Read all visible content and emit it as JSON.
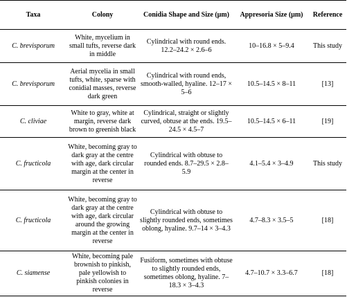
{
  "headers": {
    "taxa": "Taxa",
    "colony": "Colony",
    "conidia": "Conidia Shape and Size (μm)",
    "appresoria": "Appresoria Size (μm)",
    "reference": "Reference"
  },
  "rows": [
    {
      "taxa": "C. brevisporum",
      "colony": "White, mycelium in small tufts, reverse dark in middle",
      "conidia": "Cylindrical with round ends. 12.2–24.2 × 2.6–6",
      "appresoria": "10–16.8 × 5–9.4",
      "reference": "This study"
    },
    {
      "taxa": "C. brevisporum",
      "colony": "Aerial mycelia in small tufts, white, sparse with conidial masses, reverse dark green",
      "conidia": "Cylindrical with round ends, smooth-walled, hyaline. 12–17 × 5–6",
      "appresoria": "10.5–14.5 × 8–11",
      "reference": "[13]"
    },
    {
      "taxa": "C. cliviae",
      "colony": "White to gray, white at margin, reverse dark brown to greenish black",
      "conidia": "Cylindrical, straight or slightly curved, obtuse at the ends. 19.5–24.5 × 4.5–7",
      "appresoria": "10.5–14.5 × 6–11",
      "reference": "[19]"
    },
    {
      "taxa": "C. fructicola",
      "colony": "White, becoming gray to dark gray at the centre with age, dark circular margin at the center in reverse",
      "conidia": "Cylindrical with obtuse to rounded ends. 8.7–29.5 × 2.8–5.9",
      "appresoria": "4.1–5.4 × 3–4.9",
      "reference": "This study"
    },
    {
      "taxa": "C. fructicola",
      "colony": "White, becoming gray to dark gray at the centre with age, dark circular around the growing margin at the center in reverse",
      "conidia": "Cylindrical with obtuse to slightly rounded ends, sometimes oblong, hyaline. 9.7–14 × 3–4.3",
      "appresoria": "4.7–8.3 × 3.5–5",
      "reference": "[18]"
    },
    {
      "taxa": "C. siamense",
      "colony": "White, becoming pale brownish to pinkish, pale yellowish to pinkish colonies in reverse",
      "conidia": "Fusiform, sometimes with obtuse to slightly rounded ends, sometimes oblong, hyaline. 7–18.3 × 3–4.3",
      "appresoria": "4.7–10.7 × 3.3–6.7",
      "reference": "[18]"
    }
  ]
}
